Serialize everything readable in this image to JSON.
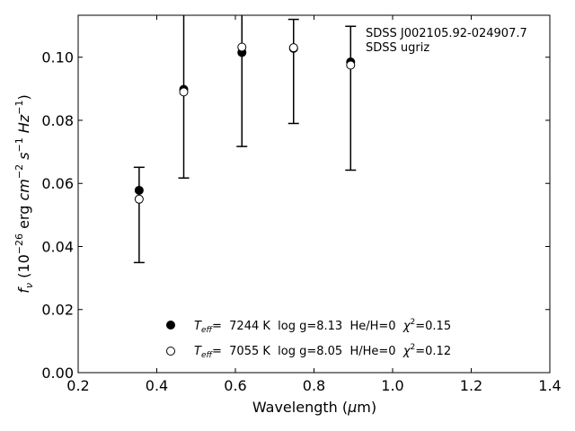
{
  "chart_data": {
    "type": "scatter",
    "title": "",
    "xlabel": "Wavelength (μm)",
    "ylabel": "f_ν (10^-26 erg cm^-2 s^-1 Hz^-1)",
    "xlim": [
      0.2,
      1.4
    ],
    "ylim": [
      0.0,
      0.1133
    ],
    "x_ticks": [
      0.2,
      0.4,
      0.6,
      0.8,
      1.0,
      1.2,
      1.4
    ],
    "x_tick_labels": [
      "0.2",
      "0.4",
      "0.6",
      "0.8",
      "1.0",
      "1.2",
      "1.4"
    ],
    "y_ticks": [
      0.0,
      0.02,
      0.04,
      0.06,
      0.08,
      0.1
    ],
    "y_tick_labels": [
      "0.00",
      "0.02",
      "0.04",
      "0.06",
      "0.08",
      "0.10"
    ],
    "grid": false,
    "legend_position": "bottom-center",
    "annotations": [
      "SDSS J002105.92-024907.7",
      "SDSS ugriz"
    ],
    "observed": {
      "x": [
        0.3551,
        0.4686,
        0.6166,
        0.748,
        0.8932
      ],
      "y": [
        0.05,
        0.0985,
        0.095,
        0.0955,
        0.087
      ],
      "yerr": [
        0.0151,
        0.0368,
        0.0233,
        0.0165,
        0.0228
      ]
    },
    "series": [
      {
        "name": "T_eff=  7244 K  log g=8.13  He/H=0  χ²=0.15",
        "marker": "filled-circle",
        "x": [
          0.3551,
          0.4686,
          0.6166,
          0.748,
          0.8932
        ],
        "y": [
          0.0578,
          0.0898,
          0.1015,
          0.1028,
          0.0985
        ]
      },
      {
        "name": "T_eff=  7055 K  log g=8.05  H/He=0  χ²=0.12",
        "marker": "open-circle",
        "x": [
          0.3551,
          0.4686,
          0.6166,
          0.748,
          0.8932
        ],
        "y": [
          0.055,
          0.089,
          0.1032,
          0.103,
          0.0975
        ]
      }
    ]
  },
  "legend": {
    "entries": [
      {
        "teff_label": "T",
        "teff_sub": "eff",
        "text": "=  7244 K  log g=8.13  He/H=0  ",
        "chi": "χ",
        "chi_sup": "2",
        "chi_val": "=0.15"
      },
      {
        "teff_label": "T",
        "teff_sub": "eff",
        "text": "=  7055 K  log g=8.05  H/He=0  ",
        "chi": "χ",
        "chi_sup": "2",
        "chi_val": "=0.12"
      }
    ]
  },
  "axis_text": {
    "xlabel_main": "Wavelength (",
    "xlabel_mu": "μ",
    "xlabel_unit": "m)",
    "ylabel_f": "f",
    "ylabel_sub": "ν",
    "ylabel_open": " (10",
    "ylabel_exp1": "−26",
    "ylabel_erg": " erg ",
    "ylabel_cm": "cm",
    "ylabel_exp2": "−2",
    "ylabel_s": " s",
    "ylabel_exp3": "−1",
    "ylabel_hz": " Hz",
    "ylabel_exp4": "−1",
    "ylabel_close": ")"
  },
  "colors": {
    "axis": "#000000",
    "marker_fill": "#000000",
    "open_fill": "#ffffff"
  }
}
